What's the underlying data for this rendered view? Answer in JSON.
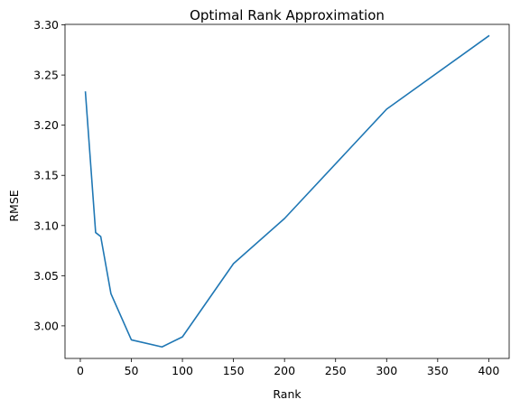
{
  "chart_data": {
    "type": "line",
    "title": "Optimal Rank Approximation",
    "xlabel": "Rank",
    "ylabel": "RMSE",
    "xlim": [
      -15,
      420
    ],
    "ylim": [
      2.9675,
      3.3005
    ],
    "xticks": [
      0,
      50,
      100,
      150,
      200,
      250,
      300,
      350,
      400
    ],
    "xtick_labels": [
      "0",
      "50",
      "100",
      "150",
      "200",
      "250",
      "300",
      "350",
      "400"
    ],
    "yticks": [
      3.0,
      3.05,
      3.1,
      3.15,
      3.2,
      3.25,
      3.3
    ],
    "ytick_labels": [
      "3.00",
      "3.05",
      "3.10",
      "3.15",
      "3.20",
      "3.25",
      "3.30"
    ],
    "grid": false,
    "legend": "none",
    "series": [
      {
        "color": "#1f77b4",
        "x": [
          5,
          15,
          20,
          30,
          50,
          80,
          100,
          150,
          200,
          300,
          400
        ],
        "y": [
          3.233,
          3.093,
          3.089,
          3.032,
          2.986,
          2.979,
          2.989,
          3.062,
          3.107,
          3.216,
          3.289
        ]
      }
    ]
  }
}
